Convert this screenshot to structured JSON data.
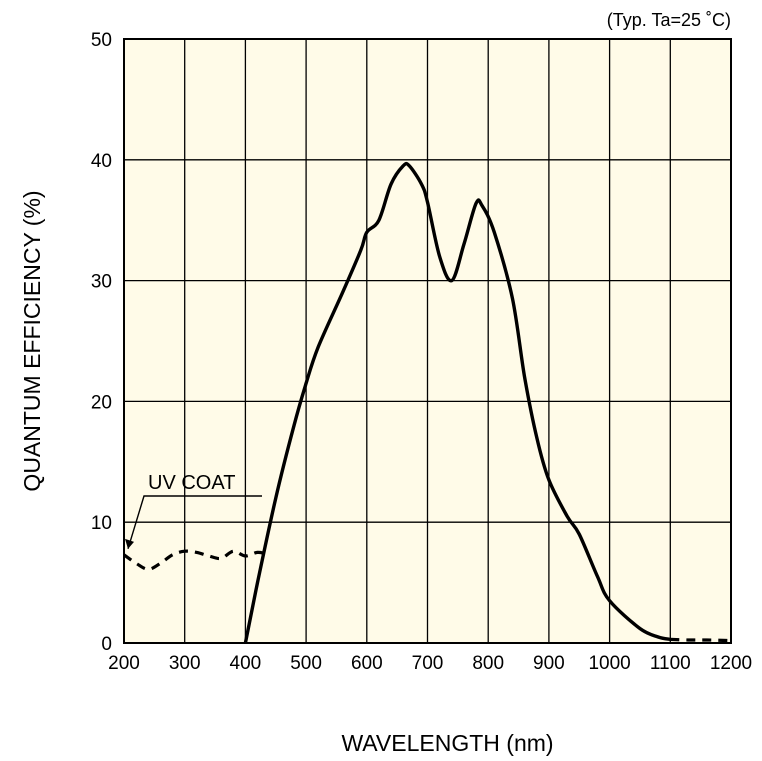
{
  "chart_data": {
    "type": "line",
    "title": "",
    "condition_note": "(Typ. Ta=25 ˚C)",
    "xlabel": "WAVELENGTH (nm)",
    "ylabel": "QUANTUM EFFICIENCY (%)",
    "xlim": [
      200,
      1200
    ],
    "ylim": [
      0,
      50
    ],
    "x_ticks": [
      "200",
      "300",
      "400",
      "500",
      "600",
      "700",
      "800",
      "900",
      "1000",
      "1100",
      "1200"
    ],
    "y_ticks": [
      "0",
      "10",
      "20",
      "30",
      "40",
      "50"
    ],
    "grid": true,
    "background": "#fffbe8",
    "series": [
      {
        "name": "",
        "style": "solid",
        "x": [
          400,
          420,
          450,
          480,
          500,
          520,
          560,
          590,
          600,
          620,
          640,
          660,
          670,
          690,
          700,
          720,
          740,
          760,
          780,
          790,
          810,
          840,
          860,
          880,
          900,
          930,
          950,
          980,
          1000,
          1050,
          1080,
          1100
        ],
        "y": [
          0,
          5,
          12,
          18,
          21.5,
          24.5,
          29,
          32.5,
          34,
          35,
          38,
          39.5,
          39.5,
          38,
          36.5,
          32,
          30,
          33,
          36.4,
          36.2,
          34,
          28.5,
          22,
          17,
          13.5,
          10.5,
          9,
          5.5,
          3.5,
          1.2,
          0.5,
          0.3
        ]
      },
      {
        "name": "UV COAT",
        "style": "dashed",
        "x": [
          200,
          220,
          240,
          260,
          280,
          300,
          320,
          340,
          360,
          380,
          400,
          420,
          440
        ],
        "y": [
          7.3,
          6.6,
          6.1,
          6.6,
          7.3,
          7.6,
          7.5,
          7.2,
          7.0,
          7.6,
          7.2,
          7.5,
          7.3
        ]
      },
      {
        "name": "",
        "style": "dashed",
        "x": [
          1100,
          1130,
          1160,
          1200
        ],
        "y": [
          0.3,
          0.25,
          0.25,
          0.2
        ]
      }
    ],
    "annotations": [
      {
        "text": "UV COAT",
        "x": 200,
        "y": 7.3
      }
    ]
  }
}
